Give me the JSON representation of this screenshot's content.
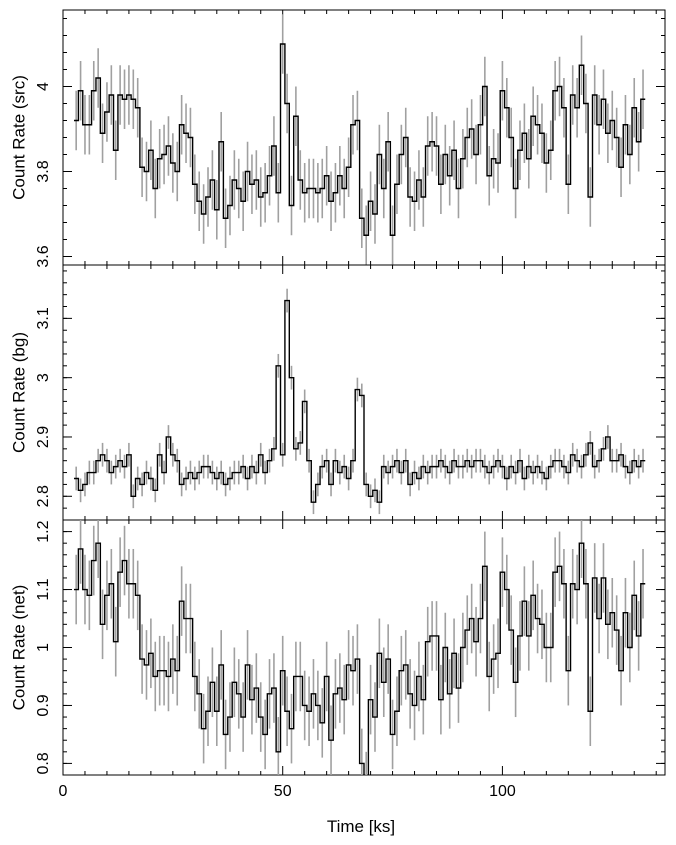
{
  "chart_data": {
    "type": "line",
    "layout": "three stacked panels sharing the x axis",
    "xlabel": "Time [ks]",
    "xlim": [
      0,
      137
    ],
    "xticks": [
      0,
      50,
      100
    ],
    "bin_width": 1.0,
    "x": [
      3,
      4,
      5,
      6,
      7,
      8,
      9,
      10,
      11,
      12,
      13,
      14,
      15,
      16,
      17,
      18,
      19,
      20,
      21,
      22,
      23,
      24,
      25,
      26,
      27,
      28,
      29,
      30,
      31,
      32,
      33,
      34,
      35,
      36,
      37,
      38,
      39,
      40,
      41,
      42,
      43,
      44,
      45,
      46,
      47,
      48,
      49,
      50,
      51,
      52,
      53,
      54,
      55,
      56,
      57,
      58,
      59,
      60,
      61,
      62,
      63,
      64,
      65,
      66,
      67,
      68,
      69,
      70,
      71,
      72,
      73,
      74,
      75,
      76,
      77,
      78,
      79,
      80,
      81,
      82,
      83,
      84,
      85,
      86,
      87,
      88,
      89,
      90,
      91,
      92,
      93,
      94,
      95,
      96,
      97,
      98,
      99,
      100,
      101,
      102,
      103,
      104,
      105,
      106,
      107,
      108,
      109,
      110,
      111,
      112,
      113,
      114,
      115,
      116,
      117,
      118,
      119,
      120,
      121,
      122,
      123,
      124,
      125,
      126,
      127,
      128,
      129,
      130,
      131,
      132,
      133,
      134
    ],
    "colors": {
      "line": "#000000",
      "error_bar": "#a0a0a0"
    },
    "panels": [
      {
        "ylabel": "Count Rate (src)",
        "ylim": [
          3.58,
          4.18
        ],
        "yticks": [
          3.6,
          3.8,
          4
        ],
        "ytick_labels": [
          "3.6",
          "3.8",
          "4"
        ],
        "error": 0.07,
        "values": [
          3.92,
          3.99,
          3.91,
          3.91,
          3.99,
          4.02,
          3.89,
          3.94,
          3.98,
          3.85,
          3.98,
          3.97,
          3.98,
          3.97,
          3.95,
          3.81,
          3.8,
          3.85,
          3.76,
          3.83,
          3.84,
          3.86,
          3.82,
          3.8,
          3.91,
          3.89,
          3.88,
          3.77,
          3.73,
          3.7,
          3.74,
          3.78,
          3.71,
          3.87,
          3.69,
          3.72,
          3.78,
          3.76,
          3.73,
          3.8,
          3.77,
          3.78,
          3.74,
          3.75,
          3.79,
          3.86,
          3.75,
          4.1,
          3.96,
          3.72,
          3.93,
          3.78,
          3.75,
          3.76,
          3.76,
          3.75,
          3.76,
          3.79,
          3.73,
          3.75,
          3.79,
          3.76,
          3.81,
          3.91,
          3.92,
          3.69,
          3.65,
          3.73,
          3.7,
          3.84,
          3.76,
          3.87,
          3.65,
          3.77,
          3.84,
          3.88,
          3.74,
          3.73,
          3.78,
          3.74,
          3.86,
          3.87,
          3.86,
          3.77,
          3.84,
          3.79,
          3.85,
          3.76,
          3.83,
          3.88,
          3.9,
          3.84,
          3.91,
          4.0,
          3.79,
          3.83,
          3.82,
          3.99,
          3.95,
          3.88,
          3.76,
          3.85,
          3.89,
          3.83,
          3.93,
          3.91,
          3.89,
          3.82,
          3.85,
          3.99,
          4.0,
          3.95,
          3.77,
          3.98,
          3.95,
          4.05,
          3.96,
          3.74,
          3.98,
          3.91,
          3.97,
          3.89,
          3.92,
          3.88,
          3.81,
          3.91,
          3.84,
          3.95,
          3.87,
          3.97
        ]
      },
      {
        "ylabel": "Count Rate (bg)",
        "ylim": [
          2.76,
          3.19
        ],
        "yticks": [
          2.8,
          2.9,
          3,
          3.1
        ],
        "ytick_labels": [
          "2.8",
          "2.9",
          "3",
          "3.1"
        ],
        "error": 0.02,
        "values": [
          2.83,
          2.81,
          2.82,
          2.84,
          2.84,
          2.86,
          2.87,
          2.86,
          2.84,
          2.85,
          2.86,
          2.85,
          2.87,
          2.8,
          2.83,
          2.82,
          2.84,
          2.83,
          2.81,
          2.87,
          2.84,
          2.9,
          2.87,
          2.86,
          2.82,
          2.83,
          2.84,
          2.83,
          2.84,
          2.85,
          2.85,
          2.84,
          2.83,
          2.84,
          2.82,
          2.83,
          2.84,
          2.84,
          2.85,
          2.83,
          2.85,
          2.84,
          2.87,
          2.84,
          2.86,
          2.88,
          3.02,
          2.87,
          3.13,
          3.0,
          2.88,
          2.89,
          2.96,
          2.86,
          2.79,
          2.82,
          2.85,
          2.86,
          2.82,
          2.86,
          2.84,
          2.85,
          2.83,
          2.86,
          2.98,
          2.97,
          2.82,
          2.8,
          2.81,
          2.79,
          2.85,
          2.84,
          2.85,
          2.86,
          2.84,
          2.86,
          2.82,
          2.84,
          2.83,
          2.85,
          2.84,
          2.85,
          2.85,
          2.86,
          2.85,
          2.84,
          2.86,
          2.85,
          2.85,
          2.86,
          2.85,
          2.86,
          2.86,
          2.85,
          2.84,
          2.85,
          2.86,
          2.85,
          2.83,
          2.85,
          2.84,
          2.86,
          2.83,
          2.85,
          2.84,
          2.85,
          2.84,
          2.83,
          2.85,
          2.86,
          2.86,
          2.85,
          2.84,
          2.87,
          2.86,
          2.85,
          2.87,
          2.89,
          2.85,
          2.86,
          2.88,
          2.9,
          2.86,
          2.86,
          2.87,
          2.85,
          2.84,
          2.86,
          2.85,
          2.86
        ]
      },
      {
        "ylabel": "Count Rate (net)",
        "ylim": [
          0.78,
          1.22
        ],
        "yticks": [
          0.8,
          0.9,
          1,
          1.1,
          1.2
        ],
        "ytick_labels": [
          "0.8",
          "0.9",
          "1",
          "1.1",
          "1.2"
        ],
        "error": 0.06,
        "values": [
          1.1,
          1.17,
          1.1,
          1.09,
          1.15,
          1.18,
          1.04,
          1.09,
          1.11,
          1.01,
          1.13,
          1.15,
          1.11,
          1.11,
          1.09,
          0.98,
          0.97,
          0.99,
          0.95,
          0.96,
          0.96,
          0.95,
          0.98,
          0.96,
          1.08,
          1.05,
          1.05,
          0.95,
          0.92,
          0.86,
          0.89,
          0.94,
          0.89,
          0.97,
          0.85,
          0.88,
          0.94,
          0.92,
          0.88,
          0.97,
          0.91,
          0.93,
          0.88,
          0.85,
          0.92,
          0.93,
          0.82,
          0.96,
          0.89,
          0.86,
          0.95,
          0.95,
          0.9,
          0.89,
          0.92,
          0.9,
          0.87,
          0.95,
          0.84,
          0.92,
          0.93,
          0.91,
          0.97,
          0.96,
          0.98,
          0.8,
          0.76,
          0.91,
          0.88,
          0.99,
          0.94,
          0.98,
          0.85,
          0.89,
          0.96,
          0.97,
          0.92,
          0.9,
          0.95,
          0.91,
          1.01,
          1.02,
          1.02,
          0.91,
          1.0,
          0.92,
          0.99,
          0.93,
          1.0,
          1.03,
          1.05,
          1.01,
          1.05,
          1.14,
          0.95,
          0.98,
          0.99,
          1.13,
          1.1,
          1.03,
          0.94,
          1.02,
          1.08,
          1.02,
          1.09,
          1.05,
          1.04,
          1.0,
          1.0,
          1.13,
          1.14,
          1.11,
          0.96,
          1.11,
          1.1,
          1.18,
          1.11,
          0.89,
          1.12,
          1.05,
          1.12,
          1.04,
          1.06,
          1.03,
          0.96,
          1.06,
          1.0,
          1.09,
          1.02,
          1.11
        ]
      }
    ]
  }
}
